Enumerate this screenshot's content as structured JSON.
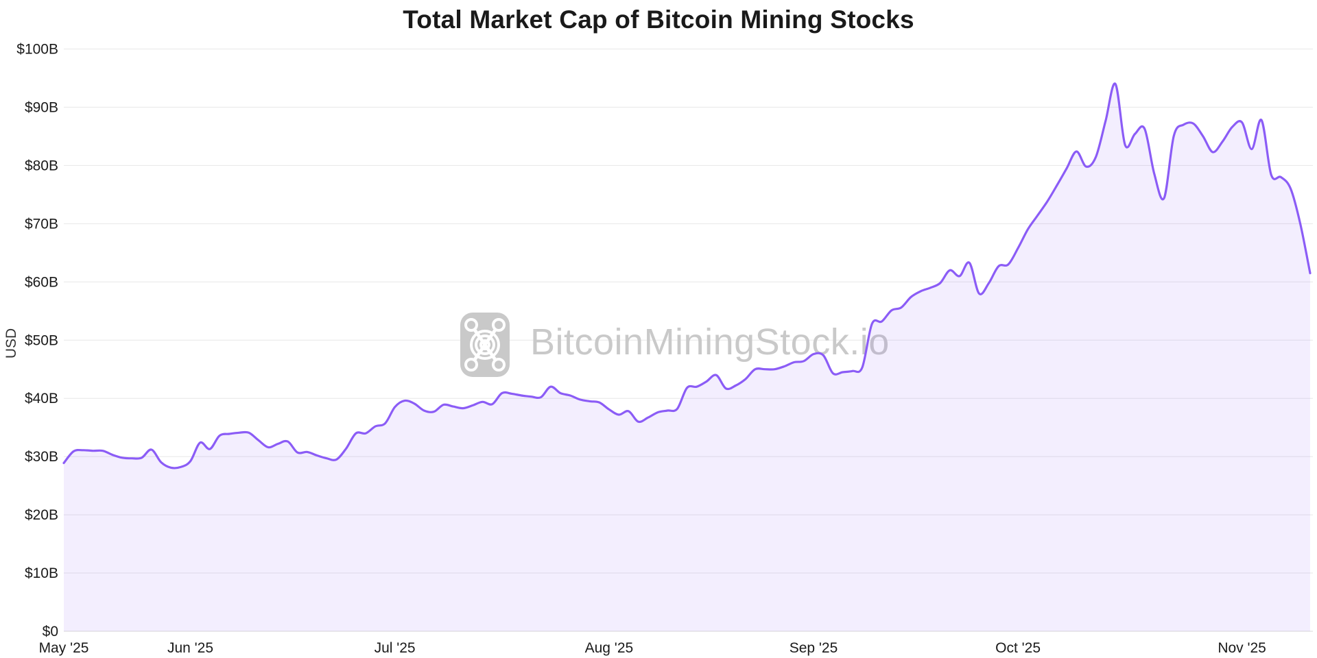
{
  "title": "Total Market Cap of Bitcoin Mining Stocks",
  "y_axis": {
    "label": "USD",
    "tick_values": [
      0,
      10,
      20,
      30,
      40,
      50,
      60,
      70,
      80,
      90,
      100
    ],
    "tick_labels": [
      "$0",
      "$10B",
      "$20B",
      "$30B",
      "$40B",
      "$50B",
      "$60B",
      "$70B",
      "$80B",
      "$90B",
      "$100B"
    ]
  },
  "x_axis": {
    "ticks": [
      {
        "label": "May '25",
        "index": 0
      },
      {
        "label": "Jun '25",
        "index": 13
      },
      {
        "label": "Jul '25",
        "index": 34
      },
      {
        "label": "Aug '25",
        "index": 56
      },
      {
        "label": "Sep '25",
        "index": 77
      },
      {
        "label": "Oct '25",
        "index": 98
      },
      {
        "label": "Nov '25",
        "index": 121
      }
    ]
  },
  "watermark": {
    "text": "BitcoinMiningStock.io",
    "logo_icon": "miner-logo"
  },
  "colors": {
    "line": "#8B5CF6",
    "fill": "rgba(139,92,246,0.10)",
    "grid": "#e7e7e7",
    "baseline": "#d9d9d9",
    "axis_text": "#1a1a1a",
    "watermark": "#c9c9c9",
    "title_text": "#1a1a1a"
  },
  "chart_data": {
    "type": "area",
    "title": "Total Market Cap of Bitcoin Mining Stocks",
    "xlabel": "",
    "ylabel": "USD",
    "unit": "billion USD",
    "ylim": [
      0,
      100
    ],
    "grid": "horizontal-only",
    "legend": "none",
    "dates": [
      "2025-05-13",
      "2025-05-14",
      "2025-05-15",
      "2025-05-16",
      "2025-05-19",
      "2025-05-20",
      "2025-05-21",
      "2025-05-22",
      "2025-05-23",
      "2025-05-27",
      "2025-05-28",
      "2025-05-29",
      "2025-05-30",
      "2025-06-02",
      "2025-06-03",
      "2025-06-04",
      "2025-06-05",
      "2025-06-06",
      "2025-06-09",
      "2025-06-10",
      "2025-06-11",
      "2025-06-12",
      "2025-06-13",
      "2025-06-16",
      "2025-06-17",
      "2025-06-18",
      "2025-06-19",
      "2025-06-20",
      "2025-06-23",
      "2025-06-24",
      "2025-06-25",
      "2025-06-26",
      "2025-06-27",
      "2025-06-30",
      "2025-07-01",
      "2025-07-02",
      "2025-07-03",
      "2025-07-07",
      "2025-07-08",
      "2025-07-09",
      "2025-07-10",
      "2025-07-11",
      "2025-07-14",
      "2025-07-15",
      "2025-07-16",
      "2025-07-17",
      "2025-07-18",
      "2025-07-21",
      "2025-07-22",
      "2025-07-23",
      "2025-07-24",
      "2025-07-25",
      "2025-07-28",
      "2025-07-29",
      "2025-07-30",
      "2025-07-31",
      "2025-08-01",
      "2025-08-04",
      "2025-08-05",
      "2025-08-06",
      "2025-08-07",
      "2025-08-08",
      "2025-08-11",
      "2025-08-12",
      "2025-08-13",
      "2025-08-14",
      "2025-08-15",
      "2025-08-18",
      "2025-08-19",
      "2025-08-20",
      "2025-08-21",
      "2025-08-22",
      "2025-08-25",
      "2025-08-26",
      "2025-08-27",
      "2025-08-28",
      "2025-08-29",
      "2025-09-02",
      "2025-09-03",
      "2025-09-04",
      "2025-09-05",
      "2025-09-08",
      "2025-09-09",
      "2025-09-10",
      "2025-09-11",
      "2025-09-12",
      "2025-09-15",
      "2025-09-16",
      "2025-09-17",
      "2025-09-18",
      "2025-09-19",
      "2025-09-22",
      "2025-09-23",
      "2025-09-24",
      "2025-09-25",
      "2025-09-26",
      "2025-09-29",
      "2025-09-30",
      "2025-10-01",
      "2025-10-02",
      "2025-10-03",
      "2025-10-06",
      "2025-10-07",
      "2025-10-08",
      "2025-10-09",
      "2025-10-10",
      "2025-10-13",
      "2025-10-14",
      "2025-10-15",
      "2025-10-16",
      "2025-10-17",
      "2025-10-20",
      "2025-10-21",
      "2025-10-22",
      "2025-10-23",
      "2025-10-24",
      "2025-10-27",
      "2025-10-28",
      "2025-10-29",
      "2025-10-30",
      "2025-10-31",
      "2025-11-03",
      "2025-11-04",
      "2025-11-05",
      "2025-11-06",
      "2025-11-07",
      "2025-11-10",
      "2025-11-11",
      "2025-11-12"
    ],
    "values": [
      28.9,
      30.9,
      31.1,
      31.0,
      31.0,
      30.3,
      29.8,
      29.7,
      29.8,
      31.2,
      29.0,
      28.1,
      28.2,
      29.2,
      32.4,
      31.3,
      33.6,
      33.9,
      34.1,
      34.1,
      32.8,
      31.6,
      32.2,
      32.6,
      30.7,
      30.8,
      30.2,
      29.7,
      29.5,
      31.4,
      34.0,
      34.0,
      35.2,
      35.7,
      38.5,
      39.6,
      39.1,
      37.9,
      37.7,
      38.9,
      38.6,
      38.3,
      38.8,
      39.4,
      39.0,
      40.9,
      40.8,
      40.5,
      40.3,
      40.2,
      42.0,
      40.9,
      40.5,
      39.8,
      39.5,
      39.3,
      38.1,
      37.2,
      37.8,
      36.0,
      36.7,
      37.6,
      37.9,
      38.2,
      41.8,
      42.0,
      42.9,
      44.0,
      41.7,
      42.2,
      43.3,
      45.0,
      45.0,
      45.0,
      45.5,
      46.2,
      46.4,
      47.6,
      47.4,
      44.3,
      44.5,
      44.7,
      45.3,
      52.8,
      53.2,
      55.1,
      55.6,
      57.4,
      58.4,
      59.0,
      59.8,
      62.0,
      61.0,
      63.3,
      58.0,
      59.8,
      62.7,
      63.0,
      65.8,
      69.0,
      71.4,
      73.8,
      76.6,
      79.5,
      82.4,
      79.8,
      81.5,
      87.7,
      94.0,
      83.5,
      85.4,
      86.3,
      78.5,
      74.4,
      85.1,
      87.0,
      87.2,
      85.0,
      82.3,
      84.1,
      86.6,
      87.4,
      82.8,
      87.8,
      78.4,
      78.0,
      76.0,
      69.9,
      61.5
    ]
  }
}
